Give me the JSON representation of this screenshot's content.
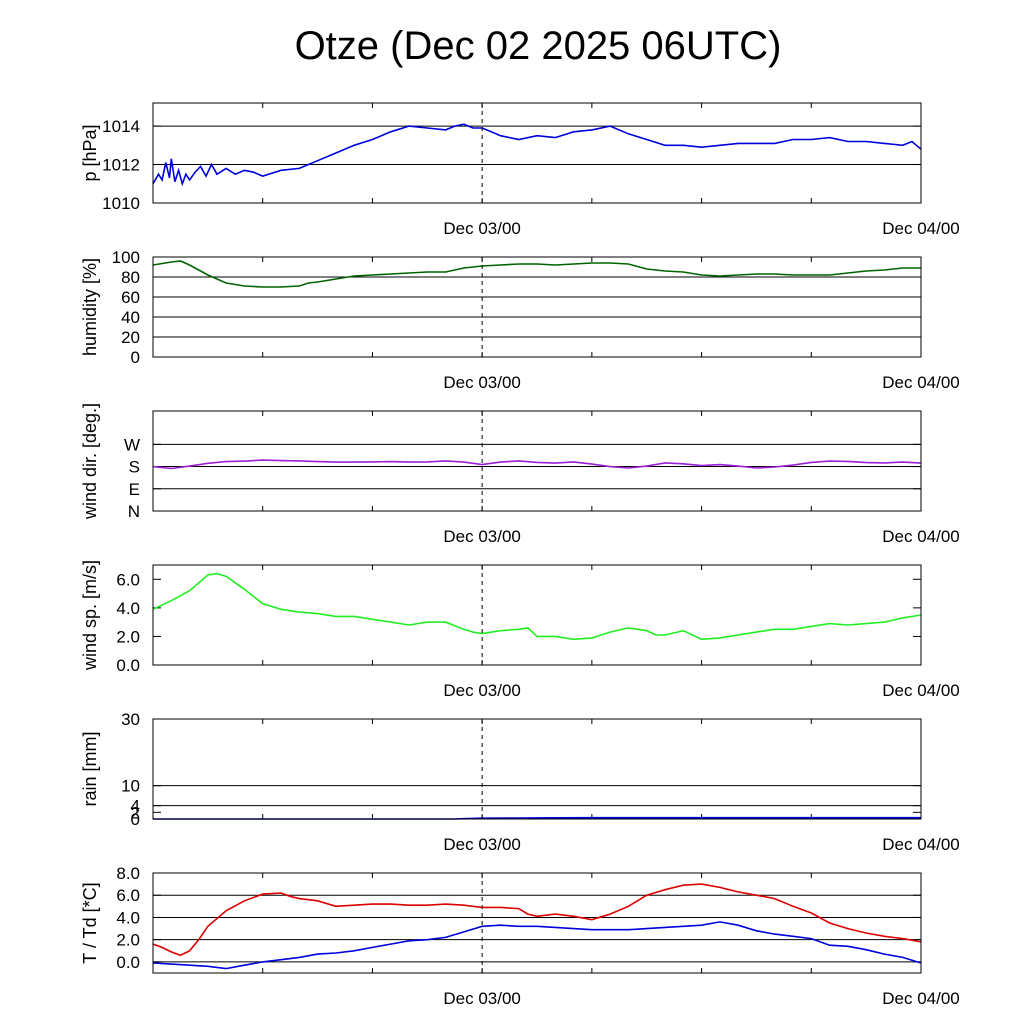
{
  "title": "Otze (Dec 02 2025 06UTC)",
  "colors": {
    "pressure": "#0000dd",
    "humidity": "#006400",
    "wind_dir": "#9a1fd6",
    "wind_speed": "#22ee22",
    "rain_bar": "#33cc44",
    "rain_accum": "#0000dd",
    "temperature": "#dd0000",
    "dewpoint": "#0000dd"
  },
  "chart_data": [
    {
      "type": "line",
      "name": "pressure",
      "ylabel": "p [hPa]",
      "ylim": [
        1010,
        1015.2
      ],
      "xlim": [
        0,
        42
      ],
      "yticks": [
        {
          "v": 1010,
          "label": "1010"
        },
        {
          "v": 1012,
          "label": "1012"
        },
        {
          "v": 1014,
          "label": "1014"
        }
      ],
      "gridlines": [
        1012,
        1014
      ],
      "xtick_labels": [
        {
          "x": 18,
          "label": "Dec 03/00"
        },
        {
          "x": 42,
          "label": "Dec 04/00"
        }
      ],
      "series": [
        {
          "name": "p",
          "color_key": "pressure",
          "x": [
            0,
            0.3,
            0.5,
            0.7,
            0.9,
            1.0,
            1.2,
            1.4,
            1.6,
            1.8,
            2.0,
            2.3,
            2.6,
            2.9,
            3.2,
            3.5,
            4,
            4.5,
            5,
            5.5,
            6,
            7,
            8,
            9,
            10,
            11,
            12,
            13,
            14,
            15,
            16,
            16.5,
            17,
            17.5,
            18,
            18.5,
            19,
            20,
            21,
            22,
            23,
            24,
            25,
            26,
            27,
            28,
            29,
            30,
            31,
            32,
            33,
            34,
            35,
            36,
            37,
            38,
            39,
            40,
            41,
            41.5,
            42
          ],
          "values": [
            1011.0,
            1011.5,
            1011.2,
            1012.1,
            1011.3,
            1012.3,
            1011.1,
            1011.7,
            1011.0,
            1011.5,
            1011.2,
            1011.6,
            1011.9,
            1011.4,
            1012.0,
            1011.5,
            1011.8,
            1011.5,
            1011.7,
            1011.6,
            1011.4,
            1011.7,
            1011.8,
            1012.2,
            1012.6,
            1013.0,
            1013.3,
            1013.7,
            1014.0,
            1013.9,
            1013.8,
            1014.0,
            1014.1,
            1013.9,
            1013.9,
            1013.7,
            1013.5,
            1013.3,
            1013.5,
            1013.4,
            1013.7,
            1013.8,
            1014.0,
            1013.6,
            1013.3,
            1013.0,
            1013.0,
            1012.9,
            1013.0,
            1013.1,
            1013.1,
            1013.1,
            1013.3,
            1013.3,
            1013.4,
            1013.2,
            1013.2,
            1013.1,
            1013.0,
            1013.2,
            1012.8
          ]
        }
      ]
    },
    {
      "type": "line",
      "name": "humidity",
      "ylabel": "humidity [%]",
      "ylim": [
        0,
        100
      ],
      "xlim": [
        0,
        42
      ],
      "yticks": [
        {
          "v": 0,
          "label": "0"
        },
        {
          "v": 20,
          "label": "20"
        },
        {
          "v": 40,
          "label": "40"
        },
        {
          "v": 60,
          "label": "60"
        },
        {
          "v": 80,
          "label": "80"
        },
        {
          "v": 100,
          "label": "100"
        }
      ],
      "gridlines": [
        20,
        40,
        60,
        80
      ],
      "xtick_labels": [
        {
          "x": 18,
          "label": "Dec 03/00"
        },
        {
          "x": 42,
          "label": "Dec 04/00"
        }
      ],
      "series": [
        {
          "name": "rh",
          "color_key": "humidity",
          "x": [
            0,
            1,
            1.5,
            2,
            3,
            4,
            5,
            6,
            7,
            8,
            8.5,
            9,
            10,
            11,
            12,
            13,
            14,
            15,
            16,
            17,
            18,
            19,
            20,
            21,
            22,
            23,
            24,
            25,
            26,
            27,
            28,
            29,
            30,
            31,
            32,
            33,
            34,
            35,
            36,
            37,
            38,
            39,
            40,
            41,
            42
          ],
          "values": [
            92,
            95,
            96,
            92,
            82,
            74,
            71,
            70,
            70,
            71,
            74,
            75,
            78,
            81,
            82,
            83,
            84,
            85,
            85,
            89,
            91,
            92,
            93,
            93,
            92,
            93,
            94,
            94,
            93,
            88,
            86,
            85,
            82,
            81,
            82,
            83,
            83,
            82,
            82,
            82,
            84,
            86,
            87,
            89,
            89
          ]
        }
      ]
    },
    {
      "type": "line",
      "name": "wind_dir",
      "ylabel": "wind dir. [deg.]",
      "ylim": [
        0,
        405
      ],
      "xlim": [
        0,
        42
      ],
      "yticks": [
        {
          "v": 0,
          "label": "N"
        },
        {
          "v": 90,
          "label": "E"
        },
        {
          "v": 180,
          "label": "S"
        },
        {
          "v": 270,
          "label": "W"
        }
      ],
      "gridlines": [
        90,
        180,
        270
      ],
      "xtick_labels": [
        {
          "x": 18,
          "label": "Dec 03/00"
        },
        {
          "x": 42,
          "label": "Dec 04/00"
        }
      ],
      "series": [
        {
          "name": "dir",
          "color_key": "wind_dir",
          "x": [
            0,
            1,
            2,
            3,
            4,
            5,
            6,
            7,
            8,
            9,
            10,
            11,
            12,
            13,
            14,
            15,
            16,
            17,
            18,
            19,
            20,
            21,
            22,
            23,
            24,
            25,
            26,
            27,
            28,
            29,
            30,
            31,
            32,
            33,
            34,
            35,
            36,
            37,
            38,
            39,
            40,
            41,
            42
          ],
          "values": [
            180,
            172,
            182,
            193,
            200,
            202,
            206,
            204,
            203,
            200,
            198,
            198,
            199,
            200,
            198,
            199,
            203,
            198,
            188,
            198,
            203,
            197,
            194,
            199,
            190,
            180,
            174,
            182,
            195,
            191,
            184,
            188,
            182,
            174,
            178,
            186,
            197,
            202,
            201,
            196,
            195,
            198,
            194
          ]
        }
      ]
    },
    {
      "type": "line",
      "name": "wind_speed",
      "ylabel": "wind sp. [m/s]",
      "ylim": [
        0,
        7
      ],
      "xlim": [
        0,
        42
      ],
      "yticks": [
        {
          "v": 0,
          "label": "0.0"
        },
        {
          "v": 2,
          "label": "2.0"
        },
        {
          "v": 4,
          "label": "4.0"
        },
        {
          "v": 6,
          "label": "6.0"
        }
      ],
      "gridlines": [],
      "xtick_labels": [
        {
          "x": 18,
          "label": "Dec 03/00"
        },
        {
          "x": 42,
          "label": "Dec 04/00"
        }
      ],
      "series": [
        {
          "name": "ff",
          "color_key": "wind_speed",
          "x": [
            0,
            1,
            2,
            3,
            3.5,
            4,
            5,
            6,
            7,
            8,
            9,
            10,
            11,
            12,
            13,
            14,
            15,
            16,
            17,
            17.5,
            18,
            19,
            20,
            20.5,
            21,
            22,
            23,
            24,
            25,
            26,
            27,
            27.5,
            28,
            29,
            30,
            31,
            31.5,
            32,
            33,
            34,
            35,
            36,
            37,
            38,
            39,
            40,
            41,
            42
          ],
          "values": [
            3.9,
            4.5,
            5.2,
            6.3,
            6.4,
            6.2,
            5.3,
            4.3,
            3.9,
            3.7,
            3.6,
            3.4,
            3.4,
            3.2,
            3.0,
            2.8,
            3.0,
            3.0,
            2.5,
            2.3,
            2.2,
            2.4,
            2.5,
            2.6,
            2.0,
            2.0,
            1.8,
            1.9,
            2.3,
            2.6,
            2.4,
            2.1,
            2.1,
            2.4,
            1.8,
            1.9,
            2.0,
            2.1,
            2.3,
            2.5,
            2.5,
            2.7,
            2.9,
            2.8,
            2.9,
            3.0,
            3.3,
            3.5
          ]
        }
      ]
    },
    {
      "type": "bar+line",
      "name": "rain",
      "ylabel": "rain [mm]",
      "ylim": [
        0,
        30
      ],
      "xlim": [
        0,
        42
      ],
      "yticks": [
        {
          "v": 0,
          "label": "0"
        },
        {
          "v": 2,
          "label": "2"
        },
        {
          "v": 4,
          "label": "4"
        },
        {
          "v": 10,
          "label": "10"
        },
        {
          "v": 30,
          "label": "30"
        }
      ],
      "gridlines": [
        4,
        10,
        30
      ],
      "xtick_labels": [
        {
          "x": 18,
          "label": "Dec 03/00"
        },
        {
          "x": 42,
          "label": "Dec 04/00"
        }
      ],
      "bars": {
        "color_key": "rain_bar",
        "x_start": [
          16.5,
          17.5,
          18.0
        ],
        "x_end": [
          17.5,
          18.0,
          19.5
        ],
        "values": [
          0.1,
          0.2,
          0.2
        ]
      },
      "series": [
        {
          "name": "accumulated",
          "color_key": "rain_accum",
          "x": [
            0,
            16.5,
            17,
            18,
            19,
            20,
            22,
            24,
            26,
            28,
            30,
            32,
            34,
            36,
            38,
            40,
            42
          ],
          "values": [
            0,
            0,
            0.1,
            0.25,
            0.3,
            0.3,
            0.35,
            0.38,
            0.4,
            0.4,
            0.4,
            0.4,
            0.4,
            0.4,
            0.4,
            0.4,
            0.4
          ]
        }
      ]
    },
    {
      "type": "line",
      "name": "temperature",
      "ylabel": "T / Td [*C]",
      "ylim": [
        -1,
        8
      ],
      "xlim": [
        0,
        42
      ],
      "yticks": [
        {
          "v": 0,
          "label": "0.0"
        },
        {
          "v": 2,
          "label": "2.0"
        },
        {
          "v": 4,
          "label": "4.0"
        },
        {
          "v": 6,
          "label": "6.0"
        },
        {
          "v": 8,
          "label": "8.0"
        }
      ],
      "gridlines": [
        0,
        2,
        4,
        6
      ],
      "xtick_labels": [
        {
          "x": 18,
          "label": "Dec 03/00"
        },
        {
          "x": 42,
          "label": "Dec 04/00"
        }
      ],
      "series": [
        {
          "name": "T",
          "color_key": "temperature",
          "x": [
            0,
            0.5,
            1,
            1.5,
            2,
            2.5,
            3,
            4,
            5,
            6,
            7,
            7.5,
            8,
            9,
            10,
            11,
            12,
            13,
            14,
            15,
            16,
            17,
            18,
            19,
            20,
            20.5,
            21,
            22,
            23,
            24,
            25,
            26,
            27,
            28,
            29,
            30,
            31,
            32,
            33,
            34,
            35,
            36,
            37,
            38,
            39,
            40,
            41,
            42
          ],
          "values": [
            1.6,
            1.3,
            0.9,
            0.6,
            1.0,
            2.0,
            3.2,
            4.6,
            5.5,
            6.1,
            6.2,
            5.9,
            5.7,
            5.5,
            5.0,
            5.1,
            5.2,
            5.2,
            5.1,
            5.1,
            5.2,
            5.1,
            4.9,
            4.9,
            4.8,
            4.3,
            4.1,
            4.3,
            4.1,
            3.8,
            4.3,
            5.0,
            6.0,
            6.5,
            6.9,
            7.0,
            6.7,
            6.3,
            6.0,
            5.7,
            5.0,
            4.4,
            3.5,
            3.0,
            2.6,
            2.3,
            2.1,
            1.8
          ]
        },
        {
          "name": "Td",
          "color_key": "dewpoint",
          "x": [
            0,
            1,
            2,
            3,
            4,
            5,
            6,
            7,
            8,
            9,
            10,
            11,
            12,
            13,
            14,
            15,
            16,
            17,
            18,
            19,
            20,
            20.5,
            21,
            22,
            23,
            24,
            25,
            26,
            27,
            28,
            29,
            30,
            31,
            32,
            33,
            34,
            35,
            36,
            37,
            38,
            39,
            40,
            41,
            42
          ],
          "values": [
            -0.1,
            -0.2,
            -0.3,
            -0.4,
            -0.6,
            -0.3,
            0.0,
            0.2,
            0.4,
            0.7,
            0.8,
            1.0,
            1.3,
            1.6,
            1.9,
            2.0,
            2.2,
            2.7,
            3.2,
            3.3,
            3.2,
            3.2,
            3.2,
            3.1,
            3.0,
            2.9,
            2.9,
            2.9,
            3.0,
            3.1,
            3.2,
            3.3,
            3.6,
            3.3,
            2.8,
            2.5,
            2.3,
            2.1,
            1.5,
            1.4,
            1.1,
            0.7,
            0.4,
            -0.1
          ]
        }
      ]
    }
  ]
}
